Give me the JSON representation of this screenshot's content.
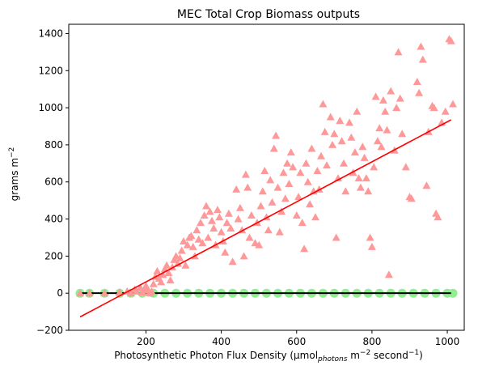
{
  "chart_data": {
    "type": "scatter",
    "title": "MEC Total Crop Biomass outputs",
    "xlabel": {
      "main": "Photosynthetic Photon Flux Density (µmol",
      "sub1": "photons",
      "mid": " m",
      "sup1": "−2",
      "mid2": " second",
      "sup2": "−1",
      "end": ")"
    },
    "ylabel": {
      "main": "grams m",
      "sup": "−2"
    },
    "xlim": [
      -5,
      1045
    ],
    "ylim": [
      -200,
      1450
    ],
    "xticks": [
      {
        "value": 200,
        "label": "200"
      },
      {
        "value": 400,
        "label": "400"
      },
      {
        "value": 600,
        "label": "600"
      },
      {
        "value": 800,
        "label": "800"
      },
      {
        "value": 1000,
        "label": "1000"
      }
    ],
    "yticks": [
      {
        "value": -200,
        "label": "−200"
      },
      {
        "value": 0,
        "label": "0"
      },
      {
        "value": 200,
        "label": "200"
      },
      {
        "value": 400,
        "label": "400"
      },
      {
        "value": 600,
        "label": "600"
      },
      {
        "value": 800,
        "label": "800"
      },
      {
        "value": 1000,
        "label": "1000"
      },
      {
        "value": 1200,
        "label": "1200"
      },
      {
        "value": 1400,
        "label": "1400"
      }
    ],
    "grid": false,
    "colors": {
      "triangles": "#ff9999",
      "circles": "#90ee90",
      "fit_line": "#ff0000",
      "zero_line": "#000000"
    },
    "series": [
      {
        "marker": "triangle",
        "color": "#ff9999",
        "points": [
          [
            25,
            0
          ],
          [
            50,
            0
          ],
          [
            90,
            0
          ],
          [
            130,
            5
          ],
          [
            150,
            10
          ],
          [
            160,
            0
          ],
          [
            170,
            20
          ],
          [
            175,
            10
          ],
          [
            185,
            30
          ],
          [
            190,
            5
          ],
          [
            195,
            15
          ],
          [
            200,
            40
          ],
          [
            205,
            20
          ],
          [
            210,
            0
          ],
          [
            215,
            10
          ],
          [
            220,
            50
          ],
          [
            225,
            90
          ],
          [
            230,
            120
          ],
          [
            235,
            80
          ],
          [
            240,
            60
          ],
          [
            245,
            100
          ],
          [
            250,
            130
          ],
          [
            255,
            150
          ],
          [
            260,
            110
          ],
          [
            265,
            70
          ],
          [
            270,
            140
          ],
          [
            275,
            180
          ],
          [
            280,
            200
          ],
          [
            285,
            160
          ],
          [
            290,
            190
          ],
          [
            295,
            230
          ],
          [
            300,
            280
          ],
          [
            305,
            150
          ],
          [
            310,
            260
          ],
          [
            315,
            300
          ],
          [
            320,
            310
          ],
          [
            325,
            250
          ],
          [
            330,
            200
          ],
          [
            335,
            340
          ],
          [
            340,
            290
          ],
          [
            345,
            380
          ],
          [
            350,
            270
          ],
          [
            355,
            420
          ],
          [
            360,
            470
          ],
          [
            365,
            300
          ],
          [
            370,
            440
          ],
          [
            375,
            390
          ],
          [
            380,
            350
          ],
          [
            385,
            260
          ],
          [
            390,
            450
          ],
          [
            395,
            410
          ],
          [
            400,
            330
          ],
          [
            405,
            280
          ],
          [
            410,
            220
          ],
          [
            415,
            380
          ],
          [
            420,
            430
          ],
          [
            425,
            350
          ],
          [
            430,
            170
          ],
          [
            440,
            560
          ],
          [
            445,
            400
          ],
          [
            450,
            460
          ],
          [
            455,
            340
          ],
          [
            460,
            200
          ],
          [
            465,
            640
          ],
          [
            470,
            570
          ],
          [
            475,
            300
          ],
          [
            480,
            420
          ],
          [
            490,
            270
          ],
          [
            495,
            380
          ],
          [
            500,
            260
          ],
          [
            505,
            470
          ],
          [
            510,
            550
          ],
          [
            515,
            660
          ],
          [
            520,
            410
          ],
          [
            525,
            340
          ],
          [
            530,
            610
          ],
          [
            535,
            490
          ],
          [
            540,
            780
          ],
          [
            545,
            850
          ],
          [
            550,
            570
          ],
          [
            555,
            330
          ],
          [
            560,
            440
          ],
          [
            565,
            650
          ],
          [
            570,
            510
          ],
          [
            575,
            700
          ],
          [
            580,
            590
          ],
          [
            585,
            760
          ],
          [
            590,
            680
          ],
          [
            600,
            420
          ],
          [
            605,
            520
          ],
          [
            610,
            650
          ],
          [
            615,
            380
          ],
          [
            620,
            240
          ],
          [
            625,
            700
          ],
          [
            630,
            600
          ],
          [
            635,
            480
          ],
          [
            640,
            780
          ],
          [
            645,
            550
          ],
          [
            650,
            410
          ],
          [
            655,
            660
          ],
          [
            660,
            560
          ],
          [
            665,
            740
          ],
          [
            670,
            1020
          ],
          [
            675,
            870
          ],
          [
            680,
            690
          ],
          [
            690,
            950
          ],
          [
            695,
            800
          ],
          [
            700,
            860
          ],
          [
            705,
            300
          ],
          [
            710,
            620
          ],
          [
            715,
            930
          ],
          [
            720,
            820
          ],
          [
            725,
            700
          ],
          [
            730,
            550
          ],
          [
            740,
            920
          ],
          [
            745,
            840
          ],
          [
            750,
            650
          ],
          [
            755,
            760
          ],
          [
            760,
            980
          ],
          [
            765,
            620
          ],
          [
            770,
            570
          ],
          [
            775,
            790
          ],
          [
            780,
            730
          ],
          [
            785,
            620
          ],
          [
            790,
            550
          ],
          [
            795,
            300
          ],
          [
            800,
            250
          ],
          [
            805,
            680
          ],
          [
            810,
            1060
          ],
          [
            815,
            820
          ],
          [
            820,
            890
          ],
          [
            825,
            790
          ],
          [
            830,
            1040
          ],
          [
            835,
            980
          ],
          [
            840,
            880
          ],
          [
            845,
            100
          ],
          [
            850,
            1090
          ],
          [
            860,
            770
          ],
          [
            865,
            1000
          ],
          [
            870,
            1300
          ],
          [
            875,
            1050
          ],
          [
            880,
            860
          ],
          [
            890,
            680
          ],
          [
            900,
            520
          ],
          [
            905,
            510
          ],
          [
            920,
            1140
          ],
          [
            925,
            1080
          ],
          [
            930,
            1330
          ],
          [
            935,
            1260
          ],
          [
            945,
            580
          ],
          [
            950,
            870
          ],
          [
            960,
            1010
          ],
          [
            965,
            1000
          ],
          [
            970,
            430
          ],
          [
            975,
            410
          ],
          [
            985,
            920
          ],
          [
            995,
            980
          ],
          [
            1005,
            1370
          ],
          [
            1010,
            1360
          ],
          [
            1015,
            1020
          ]
        ]
      },
      {
        "marker": "circle",
        "color": "#90ee90",
        "points": [
          [
            25,
            0
          ],
          [
            50,
            0
          ],
          [
            90,
            0
          ],
          [
            130,
            0
          ],
          [
            160,
            0
          ],
          [
            190,
            0
          ],
          [
            220,
            0
          ],
          [
            250,
            0
          ],
          [
            280,
            0
          ],
          [
            310,
            0
          ],
          [
            340,
            0
          ],
          [
            370,
            0
          ],
          [
            400,
            0
          ],
          [
            430,
            0
          ],
          [
            460,
            0
          ],
          [
            490,
            0
          ],
          [
            520,
            0
          ],
          [
            550,
            0
          ],
          [
            580,
            0
          ],
          [
            610,
            0
          ],
          [
            640,
            0
          ],
          [
            670,
            0
          ],
          [
            700,
            0
          ],
          [
            730,
            0
          ],
          [
            760,
            0
          ],
          [
            790,
            0
          ],
          [
            820,
            0
          ],
          [
            850,
            0
          ],
          [
            880,
            0
          ],
          [
            910,
            0
          ],
          [
            940,
            0
          ],
          [
            970,
            0
          ],
          [
            1000,
            0
          ],
          [
            1015,
            0
          ]
        ]
      }
    ],
    "lines": [
      {
        "name": "",
        "color": "#ff0000",
        "x": [
          25,
          1010
        ],
        "y": [
          -128,
          935
        ]
      },
      {
        "name": "",
        "color": "#000000",
        "x": [
          25,
          1010
        ],
        "y": [
          0,
          0
        ]
      }
    ]
  }
}
